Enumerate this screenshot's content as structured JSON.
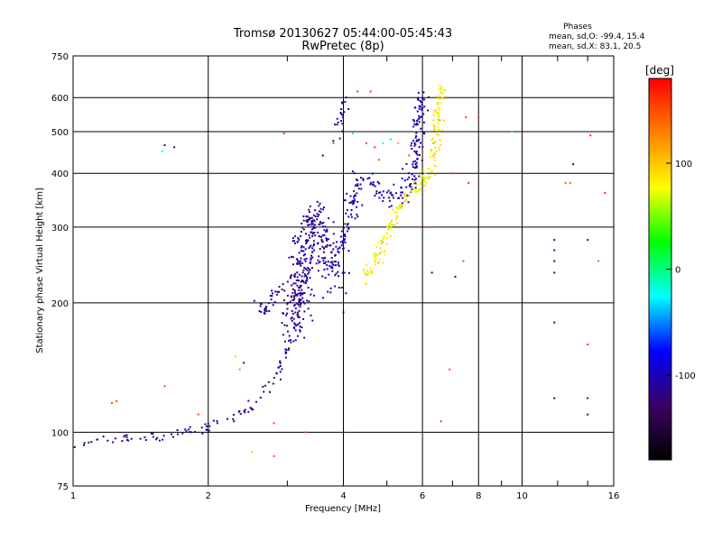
{
  "chart_data": {
    "type": "scatter",
    "title": "Tromsø 20130627 05:44:00-05:45:43",
    "subtitle": "RwPretec (8p)",
    "xlabel": "Frequency [MHz]",
    "ylabel": "Stationary phase Virtual Height [km]",
    "x_scale": "log",
    "y_scale": "log",
    "xlim": [
      1,
      16
    ],
    "ylim": [
      75,
      750
    ],
    "x_ticks": [
      1,
      2,
      4,
      6,
      8,
      10,
      16
    ],
    "x_tick_labels": [
      "1",
      "2",
      "4",
      "6",
      "8",
      "10",
      "16"
    ],
    "y_ticks": [
      75,
      100,
      200,
      300,
      400,
      500,
      600,
      750
    ],
    "y_tick_labels": [
      "75",
      "100",
      "200",
      "300",
      "400",
      "500",
      "600",
      "750"
    ],
    "grid": true,
    "stats": {
      "header": "Phases",
      "line_o": "mean, sd,O: -99.4, 15.4",
      "line_x": "mean, sd,X: 83.1, 20.5"
    },
    "colorbar": {
      "label": "[deg]",
      "min": -180,
      "max": 180,
      "ticks": [
        100,
        0,
        -100
      ],
      "tick_labels": [
        "100",
        "0",
        "-100"
      ],
      "colors": [
        "#000000",
        "#3c0064",
        "#0000ff",
        "#00ffff",
        "#00ff00",
        "#ffff00",
        "#ff8000",
        "#ff0000"
      ]
    },
    "tracks": [
      {
        "segments": [
          [
            1.0,
            94
          ],
          [
            1.1,
            95
          ],
          [
            1.2,
            96
          ],
          [
            1.3,
            97
          ],
          [
            1.45,
            97
          ],
          [
            1.6,
            98
          ],
          [
            1.8,
            100
          ],
          [
            2.0,
            102
          ],
          [
            2.2,
            106
          ],
          [
            2.35,
            110
          ],
          [
            2.5,
            115
          ],
          [
            2.6,
            120
          ],
          [
            2.7,
            126
          ],
          [
            2.8,
            132
          ],
          [
            2.9,
            142
          ],
          [
            3.0,
            155
          ],
          [
            3.1,
            175
          ],
          [
            3.2,
            200
          ],
          [
            3.3,
            230
          ],
          [
            3.4,
            260
          ]
        ],
        "phase": -115,
        "count": 140,
        "spread": 0.015,
        "seed": 11
      },
      {
        "segments": [
          [
            3.1,
            170
          ],
          [
            3.2,
            210
          ],
          [
            3.3,
            260
          ],
          [
            3.4,
            300
          ],
          [
            3.5,
            320
          ],
          [
            3.6,
            300
          ],
          [
            3.7,
            270
          ],
          [
            3.8,
            240
          ],
          [
            3.9,
            220
          ]
        ],
        "phase": -110,
        "count": 260,
        "spread": 0.05,
        "seed": 12
      },
      {
        "segments": [
          [
            3.0,
            180
          ],
          [
            3.1,
            230
          ],
          [
            3.2,
            280
          ],
          [
            3.3,
            320
          ],
          [
            3.35,
            330
          ],
          [
            3.4,
            310
          ]
        ],
        "phase": -120,
        "count": 80,
        "spread": 0.04,
        "seed": 13
      },
      {
        "segments": [
          [
            3.9,
            260
          ],
          [
            4.0,
            280
          ],
          [
            4.1,
            310
          ],
          [
            4.2,
            340
          ],
          [
            4.3,
            370
          ],
          [
            4.4,
            390
          ],
          [
            4.5,
            380
          ],
          [
            4.7,
            370
          ],
          [
            5.0,
            360
          ],
          [
            5.3,
            355
          ],
          [
            5.5,
            360
          ],
          [
            5.7,
            390
          ],
          [
            5.85,
            450
          ],
          [
            5.95,
            550
          ],
          [
            6.0,
            620
          ]
        ],
        "phase": -105,
        "count": 220,
        "spread": 0.03,
        "seed": 14
      },
      {
        "segments": [
          [
            3.85,
            470
          ],
          [
            3.95,
            530
          ],
          [
            4.0,
            580
          ]
        ],
        "phase": -110,
        "count": 20,
        "spread": 0.02,
        "seed": 15
      },
      {
        "segments": [
          [
            2.55,
            205
          ],
          [
            2.6,
            195
          ],
          [
            2.7,
            190
          ],
          [
            2.8,
            210
          ],
          [
            2.9,
            215
          ]
        ],
        "phase": -110,
        "count": 30,
        "spread": 0.015,
        "seed": 16
      },
      {
        "segments": [
          [
            4.4,
            230
          ],
          [
            4.6,
            240
          ],
          [
            4.8,
            260
          ],
          [
            5.0,
            290
          ],
          [
            5.2,
            320
          ],
          [
            5.5,
            355
          ],
          [
            5.8,
            370
          ],
          [
            6.0,
            380
          ],
          [
            6.2,
            395
          ],
          [
            6.35,
            430
          ],
          [
            6.45,
            500
          ],
          [
            6.55,
            580
          ],
          [
            6.6,
            640
          ]
        ],
        "phase": 82,
        "count": 200,
        "spread": 0.02,
        "seed": 17
      }
    ],
    "scatter_points": [
      {
        "x": 1.25,
        "y": 118,
        "phase": 150
      },
      {
        "x": 1.22,
        "y": 117,
        "phase": 150
      },
      {
        "x": 1.58,
        "y": 450,
        "phase": -20
      },
      {
        "x": 1.6,
        "y": 465,
        "phase": -120
      },
      {
        "x": 1.68,
        "y": 460,
        "phase": -130
      },
      {
        "x": 1.6,
        "y": 128,
        "phase": 150
      },
      {
        "x": 1.9,
        "y": 110,
        "phase": 150
      },
      {
        "x": 2.3,
        "y": 150,
        "phase": 60
      },
      {
        "x": 2.35,
        "y": 140,
        "phase": 30
      },
      {
        "x": 2.4,
        "y": 145,
        "phase": -120
      },
      {
        "x": 2.5,
        "y": 90,
        "phase": 60
      },
      {
        "x": 2.8,
        "y": 88,
        "phase": 150
      },
      {
        "x": 2.8,
        "y": 105,
        "phase": 150
      },
      {
        "x": 2.95,
        "y": 495,
        "phase": 150
      },
      {
        "x": 3.3,
        "y": 100,
        "phase": 150
      },
      {
        "x": 3.6,
        "y": 440,
        "phase": -150
      },
      {
        "x": 3.8,
        "y": 470,
        "phase": 150
      },
      {
        "x": 4.0,
        "y": 190,
        "phase": -120
      },
      {
        "x": 4.2,
        "y": 495,
        "phase": -10
      },
      {
        "x": 4.3,
        "y": 620,
        "phase": 160
      },
      {
        "x": 4.5,
        "y": 470,
        "phase": 150
      },
      {
        "x": 4.6,
        "y": 620,
        "phase": 160
      },
      {
        "x": 4.7,
        "y": 460,
        "phase": 160
      },
      {
        "x": 4.8,
        "y": 430,
        "phase": 150
      },
      {
        "x": 4.9,
        "y": 470,
        "phase": -20
      },
      {
        "x": 5.1,
        "y": 480,
        "phase": -10
      },
      {
        "x": 5.3,
        "y": 470,
        "phase": 120
      },
      {
        "x": 5.6,
        "y": 440,
        "phase": 150
      },
      {
        "x": 6.1,
        "y": 300,
        "phase": 150
      },
      {
        "x": 6.3,
        "y": 235,
        "phase": -120
      },
      {
        "x": 6.6,
        "y": 106,
        "phase": 160
      },
      {
        "x": 6.9,
        "y": 140,
        "phase": 150
      },
      {
        "x": 7.0,
        "y": 400,
        "phase": 160
      },
      {
        "x": 7.1,
        "y": 230,
        "phase": -120
      },
      {
        "x": 7.4,
        "y": 250,
        "phase": 150
      },
      {
        "x": 7.6,
        "y": 380,
        "phase": 160
      },
      {
        "x": 7.5,
        "y": 540,
        "phase": 150
      },
      {
        "x": 8.0,
        "y": 540,
        "phase": 160
      },
      {
        "x": 9.5,
        "y": 500,
        "phase": -10
      },
      {
        "x": 11.8,
        "y": 280,
        "phase": -120
      },
      {
        "x": 11.8,
        "y": 265,
        "phase": -120
      },
      {
        "x": 11.8,
        "y": 250,
        "phase": -120
      },
      {
        "x": 11.8,
        "y": 235,
        "phase": -120
      },
      {
        "x": 11.8,
        "y": 180,
        "phase": -120
      },
      {
        "x": 11.8,
        "y": 120,
        "phase": -120
      },
      {
        "x": 12.5,
        "y": 380,
        "phase": 140
      },
      {
        "x": 12.8,
        "y": 380,
        "phase": 140
      },
      {
        "x": 13.0,
        "y": 420,
        "phase": -150
      },
      {
        "x": 14.0,
        "y": 280,
        "phase": -120
      },
      {
        "x": 14.0,
        "y": 160,
        "phase": 160
      },
      {
        "x": 14.2,
        "y": 490,
        "phase": 160
      },
      {
        "x": 14.0,
        "y": 120,
        "phase": -120
      },
      {
        "x": 14.0,
        "y": 110,
        "phase": -120
      },
      {
        "x": 14.8,
        "y": 250,
        "phase": 140
      },
      {
        "x": 15.3,
        "y": 360,
        "phase": 160
      }
    ]
  }
}
